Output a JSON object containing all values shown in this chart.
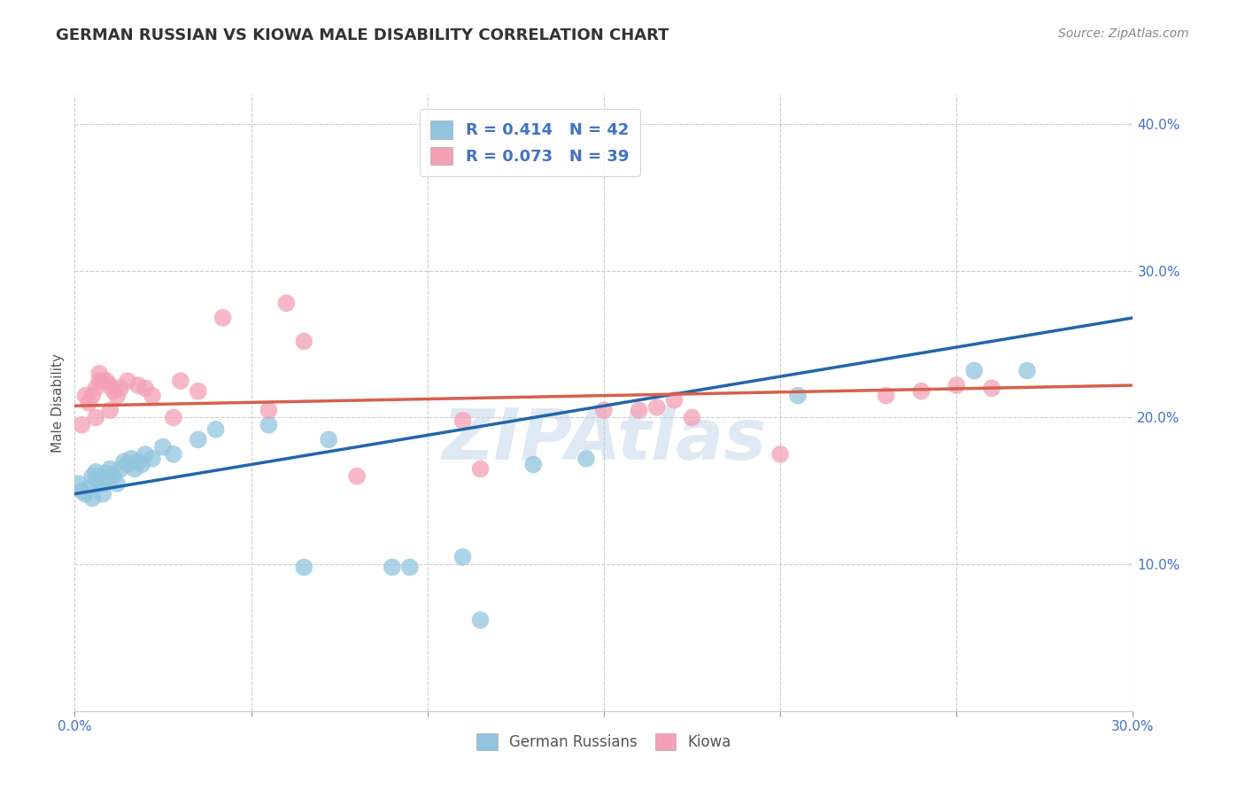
{
  "title": "GERMAN RUSSIAN VS KIOWA MALE DISABILITY CORRELATION CHART",
  "source": "Source: ZipAtlas.com",
  "ylabel": "Male Disability",
  "watermark": "ZIPAtlas",
  "xlim": [
    0.0,
    0.3
  ],
  "ylim": [
    0.0,
    0.42
  ],
  "blue_color": "#92c5de",
  "pink_color": "#f4a0b5",
  "blue_line_color": "#2166ac",
  "pink_line_color": "#d6604d",
  "background_color": "#ffffff",
  "grid_color": "#cccccc",
  "blue_scatter": [
    [
      0.001,
      0.155
    ],
    [
      0.002,
      0.15
    ],
    [
      0.003,
      0.148
    ],
    [
      0.004,
      0.152
    ],
    [
      0.005,
      0.16
    ],
    [
      0.005,
      0.145
    ],
    [
      0.006,
      0.158
    ],
    [
      0.006,
      0.163
    ],
    [
      0.007,
      0.155
    ],
    [
      0.007,
      0.16
    ],
    [
      0.008,
      0.155
    ],
    [
      0.008,
      0.148
    ],
    [
      0.009,
      0.162
    ],
    [
      0.01,
      0.158
    ],
    [
      0.01,
      0.165
    ],
    [
      0.011,
      0.16
    ],
    [
      0.012,
      0.155
    ],
    [
      0.013,
      0.165
    ],
    [
      0.014,
      0.17
    ],
    [
      0.015,
      0.168
    ],
    [
      0.016,
      0.172
    ],
    [
      0.017,
      0.165
    ],
    [
      0.018,
      0.17
    ],
    [
      0.019,
      0.168
    ],
    [
      0.02,
      0.175
    ],
    [
      0.022,
      0.172
    ],
    [
      0.025,
      0.18
    ],
    [
      0.028,
      0.175
    ],
    [
      0.035,
      0.185
    ],
    [
      0.04,
      0.192
    ],
    [
      0.055,
      0.195
    ],
    [
      0.065,
      0.098
    ],
    [
      0.072,
      0.185
    ],
    [
      0.09,
      0.098
    ],
    [
      0.095,
      0.098
    ],
    [
      0.11,
      0.105
    ],
    [
      0.115,
      0.062
    ],
    [
      0.13,
      0.168
    ],
    [
      0.145,
      0.172
    ],
    [
      0.205,
      0.215
    ],
    [
      0.255,
      0.232
    ],
    [
      0.27,
      0.232
    ]
  ],
  "pink_scatter": [
    [
      0.002,
      0.195
    ],
    [
      0.003,
      0.215
    ],
    [
      0.004,
      0.21
    ],
    [
      0.005,
      0.215
    ],
    [
      0.006,
      0.2
    ],
    [
      0.006,
      0.22
    ],
    [
      0.007,
      0.225
    ],
    [
      0.007,
      0.23
    ],
    [
      0.008,
      0.225
    ],
    [
      0.009,
      0.225
    ],
    [
      0.01,
      0.222
    ],
    [
      0.01,
      0.205
    ],
    [
      0.011,
      0.218
    ],
    [
      0.012,
      0.215
    ],
    [
      0.013,
      0.22
    ],
    [
      0.015,
      0.225
    ],
    [
      0.018,
      0.222
    ],
    [
      0.02,
      0.22
    ],
    [
      0.022,
      0.215
    ],
    [
      0.028,
      0.2
    ],
    [
      0.03,
      0.225
    ],
    [
      0.035,
      0.218
    ],
    [
      0.042,
      0.268
    ],
    [
      0.055,
      0.205
    ],
    [
      0.06,
      0.278
    ],
    [
      0.065,
      0.252
    ],
    [
      0.08,
      0.16
    ],
    [
      0.11,
      0.198
    ],
    [
      0.115,
      0.165
    ],
    [
      0.15,
      0.205
    ],
    [
      0.16,
      0.205
    ],
    [
      0.165,
      0.207
    ],
    [
      0.17,
      0.212
    ],
    [
      0.175,
      0.2
    ],
    [
      0.2,
      0.175
    ],
    [
      0.23,
      0.215
    ],
    [
      0.24,
      0.218
    ],
    [
      0.25,
      0.222
    ],
    [
      0.26,
      0.22
    ]
  ],
  "blue_line": [
    [
      0.0,
      0.148
    ],
    [
      0.3,
      0.268
    ]
  ],
  "pink_line": [
    [
      0.0,
      0.208
    ],
    [
      0.3,
      0.222
    ]
  ]
}
